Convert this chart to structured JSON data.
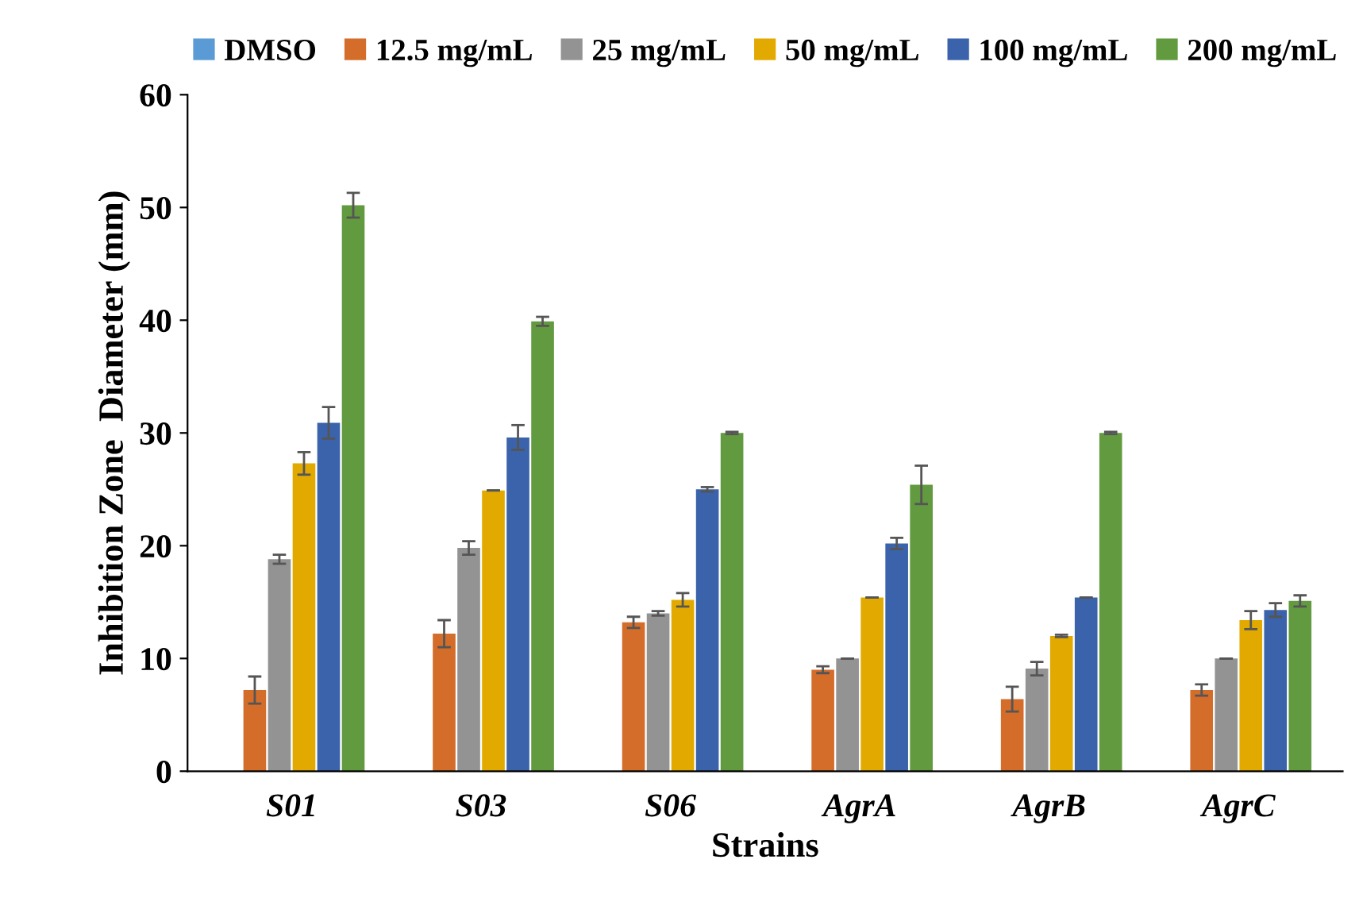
{
  "chart_data": {
    "type": "bar",
    "xlabel": "Strains",
    "ylabel": "Inhibition Zone  Diameter (mm)",
    "categories": [
      "S01",
      "S03",
      "S06",
      "AgrA",
      "AgrB",
      "AgrC"
    ],
    "series": [
      {
        "name": "DMSO",
        "color": "#5b9bd5",
        "values": [
          0,
          0,
          0,
          0,
          0,
          0
        ]
      },
      {
        "name": "12.5 mg/mL",
        "color": "#d46c2a",
        "values": [
          7.2,
          12.2,
          13.2,
          9,
          6.4,
          7.2
        ],
        "errors": [
          1.2,
          1.2,
          0.5,
          0.3,
          1.1,
          0.5
        ]
      },
      {
        "name": "25 mg/mL",
        "color": "#939393",
        "values": [
          18.8,
          19.8,
          14,
          10,
          9.1,
          10
        ],
        "errors": [
          0.4,
          0.6,
          0.2,
          0,
          0.6,
          0
        ]
      },
      {
        "name": "50 mg/mL",
        "color": "#e2aa00",
        "values": [
          27.3,
          24.9,
          15.2,
          15.4,
          12,
          13.4
        ],
        "errors": [
          1,
          0,
          0.6,
          0,
          0.1,
          0.8
        ]
      },
      {
        "name": "100 mg/mL",
        "color": "#3a63ab",
        "values": [
          30.9,
          29.6,
          25,
          20.2,
          15.4,
          14.3
        ],
        "errors": [
          1.4,
          1.1,
          0.2,
          0.5,
          0,
          0.6
        ]
      },
      {
        "name": "200 mg/mL",
        "color": "#629a3f",
        "values": [
          50.2,
          39.9,
          30,
          25.4,
          30,
          15.1
        ],
        "errors": [
          1.1,
          0.4,
          0.1,
          1.7,
          0.1,
          0.5
        ]
      }
    ],
    "ylim": [
      0,
      60
    ],
    "yticks": [
      0,
      10,
      20,
      30,
      40,
      50,
      60
    ],
    "grid": false,
    "legend": "top"
  }
}
